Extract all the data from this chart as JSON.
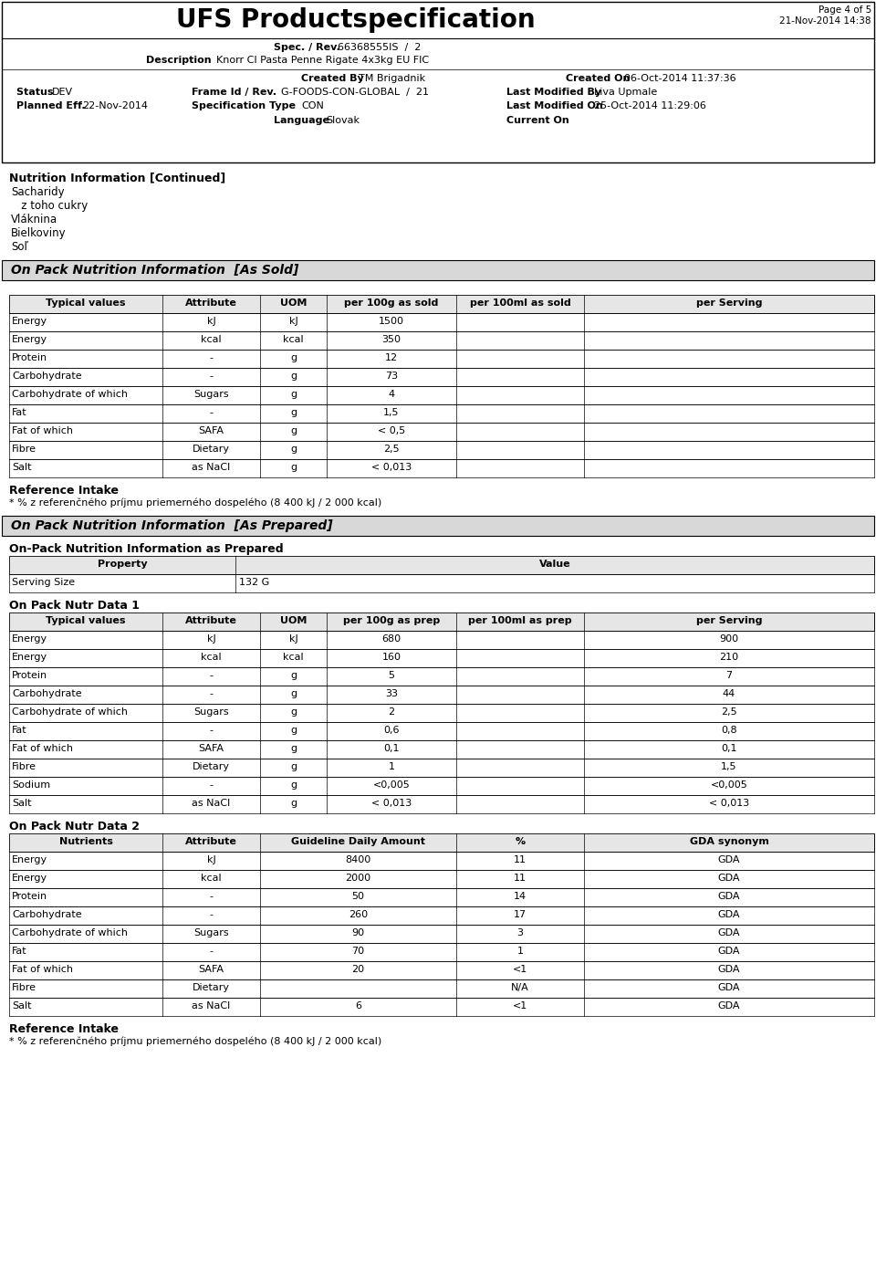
{
  "title": "UFS Productspecification",
  "page": "Page 4 of 5",
  "date": "21-Nov-2014 14:38",
  "section1_title": "Nutrition Information [Continued]",
  "section1_items": [
    "Sacharidy",
    "   z toho cukry",
    "Vláknina",
    "Bielkoviny",
    "Soľ"
  ],
  "section2_title": "On Pack Nutrition Information  [As Sold]",
  "section2_header": [
    "Typical values",
    "Attribute",
    "UOM",
    "per 100g as sold",
    "per 100ml as sold",
    "per Serving"
  ],
  "section2_rows": [
    [
      "Energy",
      "kJ",
      "kJ",
      "1500",
      "",
      ""
    ],
    [
      "Energy",
      "kcal",
      "kcal",
      "350",
      "",
      ""
    ],
    [
      "Protein",
      "-",
      "g",
      "12",
      "",
      ""
    ],
    [
      "Carbohydrate",
      "-",
      "g",
      "73",
      "",
      ""
    ],
    [
      "Carbohydrate of which",
      "Sugars",
      "g",
      "4",
      "",
      ""
    ],
    [
      "Fat",
      "-",
      "g",
      "1,5",
      "",
      ""
    ],
    [
      "Fat of which",
      "SAFA",
      "g",
      "< 0,5",
      "",
      ""
    ],
    [
      "Fibre",
      "Dietary",
      "g",
      "2,5",
      "",
      ""
    ],
    [
      "Salt",
      "as NaCl",
      "g",
      "< 0,013",
      "",
      ""
    ]
  ],
  "ref_intake_title": "Reference Intake",
  "ref_intake_note": "* % z referenčného príjmu priemerného dospelého (8 400 kJ / 2 000 kcal)",
  "section3_title": "On Pack Nutrition Information  [As Prepared]",
  "section3_subtitle": "On-Pack Nutrition Information as Prepared",
  "section3_prop_header": [
    "Property",
    "Value"
  ],
  "section3_prop_rows": [
    [
      "Serving Size",
      "132 G"
    ]
  ],
  "section4_title": "On Pack Nutr Data 1",
  "section4_header": [
    "Typical values",
    "Attribute",
    "UOM",
    "per 100g as prep",
    "per 100ml as prep",
    "per Serving"
  ],
  "section4_rows": [
    [
      "Energy",
      "kJ",
      "kJ",
      "680",
      "",
      "900"
    ],
    [
      "Energy",
      "kcal",
      "kcal",
      "160",
      "",
      "210"
    ],
    [
      "Protein",
      "-",
      "g",
      "5",
      "",
      "7"
    ],
    [
      "Carbohydrate",
      "-",
      "g",
      "33",
      "",
      "44"
    ],
    [
      "Carbohydrate of which",
      "Sugars",
      "g",
      "2",
      "",
      "2,5"
    ],
    [
      "Fat",
      "-",
      "g",
      "0,6",
      "",
      "0,8"
    ],
    [
      "Fat of which",
      "SAFA",
      "g",
      "0,1",
      "",
      "0,1"
    ],
    [
      "Fibre",
      "Dietary",
      "g",
      "1",
      "",
      "1,5"
    ],
    [
      "Sodium",
      "-",
      "g",
      "<0,005",
      "",
      "<0,005"
    ],
    [
      "Salt",
      "as NaCl",
      "g",
      "< 0,013",
      "",
      "< 0,013"
    ]
  ],
  "section5_title": "On Pack Nutr Data 2",
  "section5_header": [
    "Nutrients",
    "Attribute",
    "Guideline Daily Amount",
    "%",
    "GDA synonym"
  ],
  "section5_rows": [
    [
      "Energy",
      "kJ",
      "8400",
      "11",
      "GDA"
    ],
    [
      "Energy",
      "kcal",
      "2000",
      "11",
      "GDA"
    ],
    [
      "Protein",
      "-",
      "50",
      "14",
      "GDA"
    ],
    [
      "Carbohydrate",
      "-",
      "260",
      "17",
      "GDA"
    ],
    [
      "Carbohydrate of which",
      "Sugars",
      "90",
      "3",
      "GDA"
    ],
    [
      "Fat",
      "-",
      "70",
      "1",
      "GDA"
    ],
    [
      "Fat of which",
      "SAFA",
      "20",
      "<1",
      "GDA"
    ],
    [
      "Fibre",
      "Dietary",
      "",
      "N/A",
      "GDA"
    ],
    [
      "Salt",
      "as NaCl",
      "6",
      "<1",
      "GDA"
    ]
  ],
  "ref_intake2_title": "Reference Intake",
  "ref_intake2_note": "* % z referenčného príjmu priemerného dospelého (8 400 kJ / 2 000 kcal)"
}
